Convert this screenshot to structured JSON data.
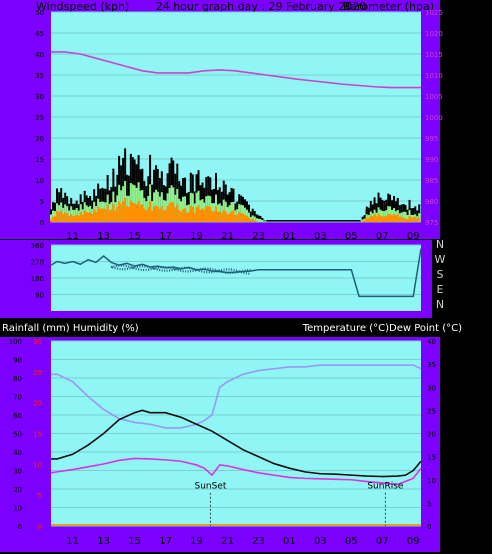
{
  "header": {
    "left_label": "Windspeed (kph)",
    "title": "24 hour graph day : 29 February 2020",
    "right_label": "Barometer (hpa)"
  },
  "labels2": {
    "left": "Rainfall (mm)  Humidity (%)",
    "right": "Temperature (°C)Dew Point (°C)"
  },
  "time_ticks": [
    "11",
    "13",
    "15",
    "17",
    "19",
    "21",
    "23",
    "01",
    "03",
    "05",
    "07",
    "09"
  ],
  "colors": {
    "purple": "#7b00ff",
    "plot_bg": "#8ff5f5",
    "grid": "#7ad0d0",
    "gust": "#000000",
    "avg": "#90f090",
    "wind_orange": "#ff9000",
    "baro": "#cc44cc",
    "direction": "#1f5f7a",
    "temp": "#111111",
    "dew": "#e030e0",
    "humidity": "#9999f0",
    "red_axis": "#ff2020"
  },
  "chart_data": [
    {
      "type": "line",
      "name": "wind-barometer",
      "left_axis": {
        "label": "Windspeed (kph)",
        "range": [
          0,
          50
        ],
        "ticks": [
          0,
          5,
          10,
          15,
          20,
          25,
          30,
          35,
          40,
          45,
          50
        ]
      },
      "right_axis": {
        "label": "Barometer (hpa)",
        "range": [
          975,
          1025
        ],
        "ticks": [
          975,
          980,
          985,
          990,
          995,
          1000,
          1005,
          1010,
          1015,
          1020,
          1025
        ]
      },
      "barometer": {
        "x": [
          9.6,
          10.5,
          11.5,
          12.5,
          13.5,
          14.5,
          15.5,
          16.5,
          17.5,
          18.5,
          19.5,
          20.5,
          21.5,
          22.5,
          23.5,
          24.5,
          25.5,
          26.5,
          27.5,
          28.5,
          29.5,
          30.5,
          31.5,
          32.5,
          33.5
        ],
        "y": [
          1015.5,
          1015.5,
          1015,
          1014,
          1013,
          1012,
          1011,
          1010.5,
          1010.5,
          1010.5,
          1011,
          1011.2,
          1011,
          1010.5,
          1010,
          1009.5,
          1009,
          1008.6,
          1008.2,
          1007.8,
          1007.5,
          1007.2,
          1007,
          1007,
          1007
        ]
      },
      "wind_gust": {
        "x": [
          9.6,
          10,
          11,
          12,
          13,
          13.5,
          14,
          14.5,
          15,
          15.5,
          16,
          16.5,
          17,
          17.5,
          18,
          18.5,
          19,
          19.5,
          20,
          20.5,
          21,
          21.5,
          22,
          22.5,
          23,
          23.5,
          29.6,
          30,
          30.5,
          31,
          31.5,
          32,
          32.5,
          33,
          33.5
        ],
        "y": [
          5,
          9,
          6,
          8,
          10,
          14,
          16,
          18,
          17,
          15,
          16,
          14,
          15,
          16,
          14,
          12,
          13,
          14,
          12,
          13,
          11,
          8,
          6,
          4,
          2,
          0,
          0,
          4,
          6,
          8,
          7,
          6,
          5,
          6,
          4
        ]
      },
      "wind_avg": {
        "x": [
          9.6,
          10,
          11,
          12,
          13,
          13.5,
          14,
          14.5,
          15,
          15.5,
          16,
          16.5,
          17,
          17.5,
          18,
          18.5,
          19,
          19.5,
          20,
          20.5,
          21,
          21.5,
          22,
          22.5,
          23,
          23.5,
          29.6,
          30,
          30.5,
          31,
          31.5,
          32,
          32.5,
          33,
          33.5
        ],
        "y": [
          3,
          5,
          4,
          5,
          6,
          8,
          9,
          10,
          10,
          9,
          9,
          8,
          9,
          9,
          8,
          7,
          8,
          8,
          7,
          7,
          6,
          5,
          4,
          2,
          1,
          0,
          0,
          2,
          3,
          4,
          4,
          3,
          3,
          3,
          2
        ]
      },
      "wind_orange": {
        "x": [
          9.6,
          10,
          11,
          12,
          13,
          13.5,
          14,
          14.5,
          15,
          15.5,
          16,
          16.5,
          17,
          17.5,
          18,
          18.5,
          19,
          19.5,
          20,
          20.5,
          21,
          21.5,
          22,
          22.5,
          23,
          23.5,
          29.6,
          30,
          30.5,
          31,
          31.5,
          32,
          32.5,
          33,
          33.5
        ],
        "y": [
          1,
          3,
          2,
          3,
          4,
          5,
          5,
          6,
          5,
          5,
          5,
          4,
          5,
          5,
          4,
          4,
          4,
          5,
          4,
          4,
          3,
          3,
          2,
          1,
          0,
          0,
          0,
          1,
          2,
          2,
          2,
          2,
          1,
          2,
          1
        ]
      }
    },
    {
      "type": "line",
      "name": "wind-direction",
      "ticks": [
        "360",
        "270",
        "180",
        "90"
      ],
      "right_labels": [
        "N",
        "W",
        "S",
        "E",
        "N"
      ],
      "range": [
        0,
        360
      ],
      "x": [
        9.6,
        10,
        10.5,
        11,
        11.5,
        12,
        12.5,
        13,
        13.5,
        14,
        14.5,
        15,
        15.5,
        16,
        16.5,
        17,
        17.5,
        18,
        18.5,
        19,
        19.5,
        20,
        20.5,
        21,
        21.5,
        22,
        22.5,
        23,
        24,
        25,
        26,
        27,
        28,
        29,
        29.5,
        30,
        31,
        32,
        33,
        33.5
      ],
      "y": [
        250,
        270,
        260,
        270,
        255,
        280,
        265,
        300,
        265,
        250,
        260,
        245,
        255,
        240,
        245,
        235,
        240,
        230,
        238,
        225,
        228,
        218,
        215,
        210,
        212,
        215,
        218,
        225,
        225,
        225,
        225,
        225,
        225,
        225,
        80,
        80,
        80,
        80,
        80,
        340
      ]
    },
    {
      "type": "line",
      "name": "rain-humidity-temperature",
      "left_axis": {
        "label": "Humidity (%)",
        "range": [
          0,
          100
        ],
        "ticks": [
          0,
          10,
          20,
          30,
          40,
          50,
          60,
          70,
          80,
          90,
          100
        ]
      },
      "rain_axis": {
        "label": "Rainfall (mm)",
        "range": [
          0,
          30
        ],
        "ticks": [
          0,
          5,
          10,
          15,
          20,
          25,
          30
        ]
      },
      "right_axis": {
        "label": "Temperature (°C)",
        "range": [
          0,
          40
        ],
        "ticks": [
          0,
          5,
          10,
          15,
          20,
          25,
          30,
          35,
          40
        ]
      },
      "annotations": [
        {
          "text": "SunSet",
          "x": 19.9
        },
        {
          "text": "SunRise",
          "x": 31.2
        }
      ],
      "humidity": {
        "x": [
          9.6,
          10,
          11,
          12,
          13,
          14,
          15,
          16,
          17,
          18,
          19,
          19.5,
          20,
          20.5,
          21,
          22,
          23,
          24,
          25,
          26,
          27,
          28,
          29,
          30,
          31,
          32,
          33,
          33.5
        ],
        "y": [
          82,
          82,
          78,
          70,
          63,
          58,
          56,
          55,
          53,
          53,
          55,
          57,
          60,
          75,
          78,
          82,
          84,
          85,
          86,
          86,
          87,
          87,
          87,
          87,
          87,
          87,
          87,
          85
        ]
      },
      "temperature": {
        "x": [
          9.6,
          10,
          11,
          12,
          13,
          14,
          15,
          15.5,
          16,
          17,
          18,
          19,
          20,
          21,
          22,
          23,
          24,
          25,
          26,
          27,
          28,
          29,
          30,
          31,
          32,
          32.5,
          33,
          33.5
        ],
        "y": [
          14.5,
          14.5,
          15.5,
          17.5,
          20,
          23,
          24.5,
          25,
          24.5,
          24.5,
          23.5,
          22,
          20.5,
          18.5,
          16.5,
          15,
          13.5,
          12.5,
          11.7,
          11.3,
          11.2,
          11,
          10.8,
          10.7,
          10.8,
          11,
          12,
          14
        ]
      },
      "dew_point": {
        "x": [
          9.6,
          10,
          11,
          12,
          13,
          14,
          15,
          16,
          17,
          18,
          19,
          19.5,
          20,
          20.5,
          21,
          22,
          23,
          24,
          25,
          26,
          27,
          28,
          29,
          30,
          31,
          32,
          33,
          33.5
        ],
        "y": [
          11.5,
          11.7,
          12.2,
          12.8,
          13.4,
          14.2,
          14.6,
          14.5,
          14.3,
          14,
          13.2,
          12.5,
          11,
          13.2,
          13,
          12.2,
          11.5,
          11,
          10.5,
          10.3,
          10.2,
          10.1,
          10,
          9.6,
          9.3,
          9,
          10.3,
          12.5
        ]
      }
    }
  ]
}
